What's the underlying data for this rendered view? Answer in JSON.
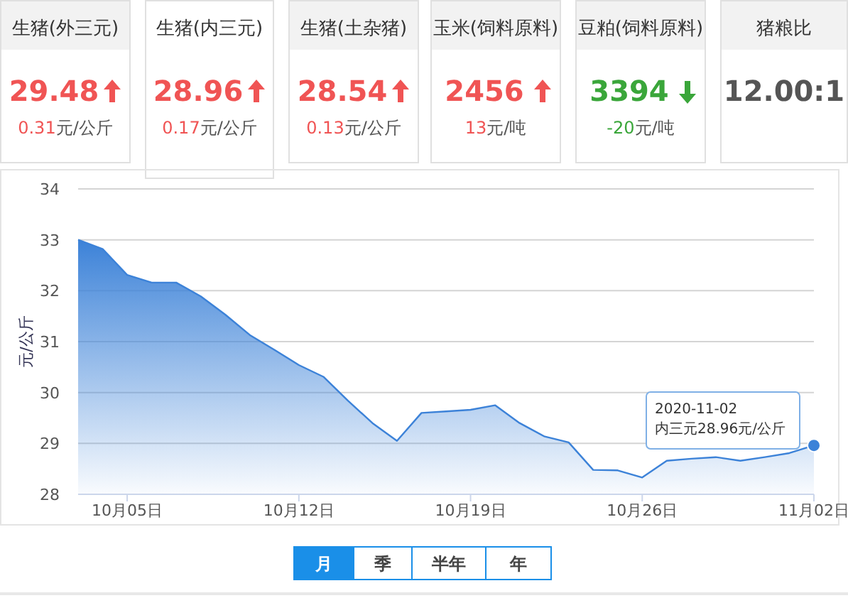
{
  "chart_data": [
    {
      "type": "other",
      "categories": [
        "生猪(外三元)",
        "生猪(内三元)",
        "生猪(土杂猪)",
        "玉米(饲料原料)",
        "豆粕(饲料原料)",
        "猪粮比"
      ],
      "value_labels": [
        "29.48",
        "28.96",
        "28.54",
        "2456",
        "3394",
        "12.00:1"
      ],
      "annotations": [
        "0.31元/公斤",
        "0.17元/公斤",
        "0.13元/公斤",
        "13元/吨",
        "-20元/吨"
      ],
      "colors": [
        "#f05454",
        "#f05454",
        "#f05454",
        "#f05454",
        "#3aa63a",
        "#555555"
      ]
    },
    {
      "type": "area",
      "ylabel": "元/公斤",
      "color": "#3c82d8",
      "x": [
        "2020-10-03",
        "2020-10-04",
        "2020-10-05",
        "2020-10-06",
        "2020-10-07",
        "2020-10-08",
        "2020-10-09",
        "2020-10-10",
        "2020-10-11",
        "2020-10-12",
        "2020-10-13",
        "2020-10-14",
        "2020-10-15",
        "2020-10-16",
        "2020-10-17",
        "2020-10-18",
        "2020-10-19",
        "2020-10-20",
        "2020-10-21",
        "2020-10-22",
        "2020-10-23",
        "2020-10-24",
        "2020-10-25",
        "2020-10-26",
        "2020-10-27",
        "2020-10-28",
        "2020-10-29",
        "2020-10-30",
        "2020-10-31",
        "2020-11-01",
        "2020-11-02"
      ],
      "values": [
        33.0,
        32.82,
        32.31,
        32.16,
        32.16,
        31.89,
        31.53,
        31.13,
        30.84,
        30.54,
        30.31,
        29.84,
        29.4,
        29.05,
        29.6,
        29.63,
        29.66,
        29.75,
        29.4,
        29.14,
        29.02,
        28.48,
        28.47,
        28.33,
        28.66,
        28.7,
        28.73,
        28.66,
        28.73,
        28.81,
        28.96
      ],
      "xlim": [
        "2020-10-03",
        "2020-11-02"
      ],
      "xticks": [
        {
          "value": "2020-10-05",
          "label": "10月05日"
        },
        {
          "value": "2020-10-12",
          "label": "10月12日"
        },
        {
          "value": "2020-10-19",
          "label": "10月19日"
        },
        {
          "value": "2020-10-26",
          "label": "10月26日"
        },
        {
          "value": "2020-11-02",
          "label": "11月02日"
        }
      ],
      "ylim": [
        28,
        34
      ],
      "yticks": [
        28,
        29,
        30,
        31,
        32,
        33,
        34
      ],
      "grid": "y",
      "marker": "none",
      "annotations": [
        "2020-11-02",
        "内三元28.96元/公斤",
        "月",
        "季",
        "半年",
        "年"
      ]
    }
  ]
}
